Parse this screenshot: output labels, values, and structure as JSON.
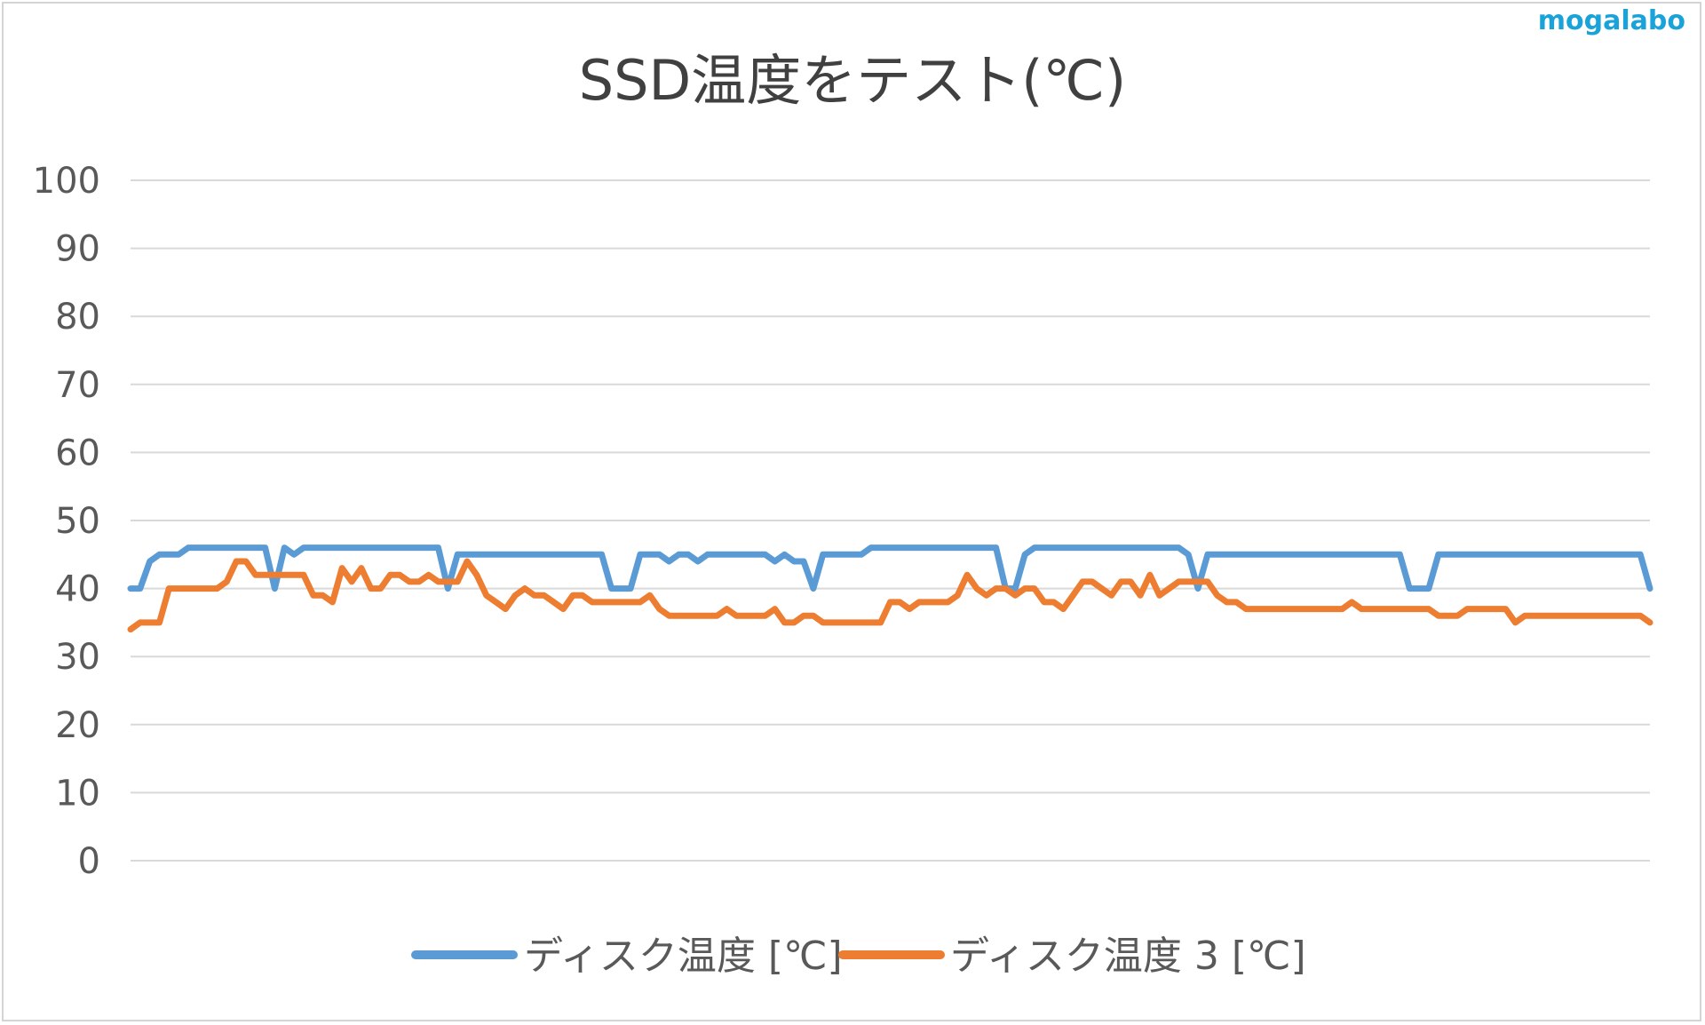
{
  "watermark": "mogalabo",
  "chart_data": {
    "type": "line",
    "title": "SSD温度をテスト(℃)",
    "xlabel": "",
    "ylabel": "",
    "ylim": [
      0,
      100
    ],
    "yticks": [
      0,
      10,
      20,
      30,
      40,
      50,
      60,
      70,
      80,
      90,
      100
    ],
    "grid": true,
    "legend_position": "bottom",
    "series": [
      {
        "name": "ディスク温度 [℃]",
        "color": "#5b9bd5",
        "values": [
          40,
          40,
          44,
          45,
          45,
          45,
          46,
          46,
          46,
          46,
          46,
          46,
          46,
          46,
          46,
          40,
          46,
          45,
          46,
          46,
          46,
          46,
          46,
          46,
          46,
          46,
          46,
          46,
          46,
          46,
          46,
          46,
          46,
          40,
          45,
          45,
          45,
          45,
          45,
          45,
          45,
          45,
          45,
          45,
          45,
          45,
          45,
          45,
          45,
          45,
          40,
          40,
          40,
          45,
          45,
          45,
          44,
          45,
          45,
          44,
          45,
          45,
          45,
          45,
          45,
          45,
          45,
          44,
          45,
          44,
          44,
          40,
          45,
          45,
          45,
          45,
          45,
          46,
          46,
          46,
          46,
          46,
          46,
          46,
          46,
          46,
          46,
          46,
          46,
          46,
          46,
          40,
          40,
          45,
          46,
          46,
          46,
          46,
          46,
          46,
          46,
          46,
          46,
          46,
          46,
          46,
          46,
          46,
          46,
          46,
          45,
          40,
          45,
          45,
          45,
          45,
          45,
          45,
          45,
          45,
          45,
          45,
          45,
          45,
          45,
          45,
          45,
          45,
          45,
          45,
          45,
          45,
          45,
          40,
          40,
          40,
          45,
          45,
          45,
          45,
          45,
          45,
          45,
          45,
          45,
          45,
          45,
          45,
          45,
          45,
          45,
          45,
          45,
          45,
          45,
          45,
          45,
          45,
          40
        ]
      },
      {
        "name": "ディスク温度 3 [℃]",
        "color": "#ed7d31",
        "values": [
          34,
          35,
          35,
          35,
          40,
          40,
          40,
          40,
          40,
          40,
          41,
          44,
          44,
          42,
          42,
          42,
          42,
          42,
          42,
          39,
          39,
          38,
          43,
          41,
          43,
          40,
          40,
          42,
          42,
          41,
          41,
          42,
          41,
          41,
          41,
          44,
          42,
          39,
          38,
          37,
          39,
          40,
          39,
          39,
          38,
          37,
          39,
          39,
          38,
          38,
          38,
          38,
          38,
          38,
          39,
          37,
          36,
          36,
          36,
          36,
          36,
          36,
          37,
          36,
          36,
          36,
          36,
          37,
          35,
          35,
          36,
          36,
          35,
          35,
          35,
          35,
          35,
          35,
          35,
          38,
          38,
          37,
          38,
          38,
          38,
          38,
          39,
          42,
          40,
          39,
          40,
          40,
          39,
          40,
          40,
          38,
          38,
          37,
          39,
          41,
          41,
          40,
          39,
          41,
          41,
          39,
          42,
          39,
          40,
          41,
          41,
          41,
          41,
          39,
          38,
          38,
          37,
          37,
          37,
          37,
          37,
          37,
          37,
          37,
          37,
          37,
          37,
          38,
          37,
          37,
          37,
          37,
          37,
          37,
          37,
          37,
          36,
          36,
          36,
          37,
          37,
          37,
          37,
          37,
          35,
          36,
          36,
          36,
          36,
          36,
          36,
          36,
          36,
          36,
          36,
          36,
          36,
          36,
          35
        ]
      }
    ]
  }
}
